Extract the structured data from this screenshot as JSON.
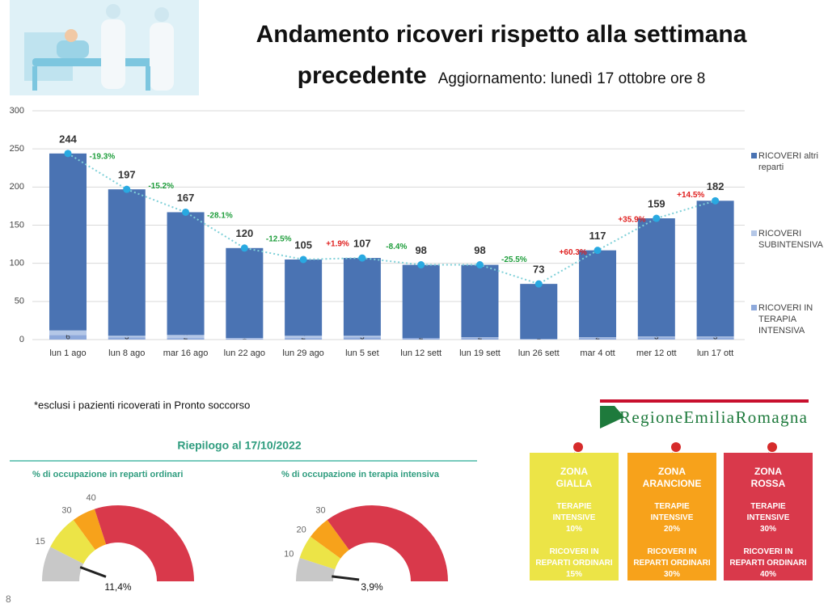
{
  "header": {
    "title": "Andamento ricoveri rispetto alla settimana precedente",
    "update": "Aggiornamento: lunedì 17 ottobre ore 8"
  },
  "chart_data": [
    {
      "type": "bar",
      "stacked": true,
      "categories": [
        "lun 1 ago",
        "lun 8 ago",
        "mar 16 ago",
        "lun 22 ago",
        "lun 29 ago",
        "lun 5 set",
        "lun 12 sett",
        "lun 19 sett",
        "lun 26 sett",
        "mar 4 ott",
        "mer 12 ott",
        "lun 17 ott"
      ],
      "series": [
        {
          "name": "RICOVERI altri reparti",
          "type": "bar",
          "color": "#4a73b3",
          "values": [
            232,
            192,
            161,
            118,
            100,
            102,
            96,
            95,
            72,
            114,
            155,
            178
          ]
        },
        {
          "name": "RICOVERI SUBINTENSIVA",
          "type": "bar",
          "color": "#b4c7e7",
          "data_labels": true,
          "values": [
            6,
            2,
            4,
            1,
            3,
            2,
            0,
            1,
            0,
            1,
            1,
            1
          ]
        },
        {
          "name": "RICOVERI IN TERAPIA INTENSIVA",
          "type": "bar",
          "color": "#8ea9db",
          "data_labels": true,
          "values": [
            6,
            3,
            2,
            1,
            2,
            3,
            2,
            2,
            1,
            2,
            3,
            3
          ]
        },
        {
          "type": "line",
          "color": "#29a9e1",
          "line_color": "#7fd0d8",
          "data_labels": true,
          "values": [
            244,
            197,
            167,
            120,
            105,
            107,
            98,
            98,
            73,
            117,
            159,
            182
          ]
        }
      ],
      "changes": {
        "values": [
          -19.3,
          -15.2,
          -28.1,
          -12.5,
          1.9,
          -8.4,
          null,
          -25.5,
          60.3,
          35.9,
          14.5
        ],
        "value_labels": [
          "-19.3%",
          "-15.2%",
          "-28.1%",
          "-12.5%",
          "+1.9%",
          "-8.4%",
          null,
          "-25.5%",
          "+60.3%",
          "+35.9%",
          "+14.5%"
        ]
      },
      "increase_color": "#e0201f",
      "decrease_color": "#1f9e3c",
      "ylim": [
        0,
        300
      ],
      "yticks": [
        0,
        50,
        100,
        150,
        200,
        250,
        300
      ],
      "grid": true,
      "legend": "right"
    },
    {
      "type": "gauge",
      "title": "% di occupazione in reparti ordinari",
      "ylim": [
        0,
        100
      ],
      "yticks": [
        15,
        30,
        40
      ],
      "band_colors": [
        "#c8c8c8",
        "#ece447",
        "#f7a21b",
        "#d9394b"
      ],
      "value": 11.4,
      "value_label": "11,4%"
    },
    {
      "type": "gauge",
      "title": "% di occupazione in terapia intensiva",
      "ylim": [
        0,
        100
      ],
      "yticks": [
        10,
        20,
        30
      ],
      "band_colors": [
        "#c8c8c8",
        "#ece447",
        "#f7a21b",
        "#d9394b"
      ],
      "value": 3.9,
      "value_label": "3,9%"
    }
  ],
  "note": "*esclusi i pazienti ricoverati in Pronto soccorso",
  "summary_title": "Riepilogo al  17/10/2022",
  "logo": "RegioneEmiliaRomagna",
  "zones": [
    {
      "name": "ZONA GIALLA",
      "color": "#ece447",
      "ti_label": "TERAPIE INTENSIVE",
      "ti": "10%",
      "ro_label": "RICOVERI IN REPARTI ORDINARI",
      "ro": "15%"
    },
    {
      "name": "ZONA ARANCIONE",
      "color": "#f7a21b",
      "ti_label": "TERAPIE INTENSIVE",
      "ti": "20%",
      "ro_label": "RICOVERI IN REPARTI ORDINARI",
      "ro": "30%"
    },
    {
      "name": "ZONA ROSSA",
      "color": "#d9394b",
      "ti_label": "TERAPIE INTENSIVE",
      "ti": "30%",
      "ro_label": "RICOVERI IN REPARTI ORDINARI",
      "ro": "40%"
    }
  ],
  "page_number": "8"
}
